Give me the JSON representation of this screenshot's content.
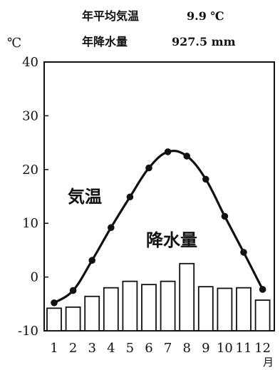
{
  "header": {
    "temp_label": "年平均気温",
    "temp_value": "9.9 ℃",
    "precip_label": "年降水量",
    "precip_value": "927.5 mm"
  },
  "chart_data": {
    "type": "bar+line",
    "y_unit": "℃",
    "x_unit": "月",
    "categories": [
      "1",
      "2",
      "3",
      "4",
      "5",
      "6",
      "7",
      "8",
      "9",
      "10",
      "11",
      "12"
    ],
    "ylim": [
      -10,
      40
    ],
    "yticks": [
      -10,
      0,
      10,
      20,
      30,
      40
    ],
    "grid": false,
    "series": [
      {
        "name": "気温",
        "type": "line",
        "color": "#111111",
        "values": [
          -4.8,
          -2.5,
          3.1,
          9.2,
          14.9,
          20.3,
          23.3,
          22.5,
          18.2,
          11.3,
          4.6,
          -2.3
        ]
      },
      {
        "name": "降水量",
        "type": "bar",
        "color": "#ffffff",
        "values": [
          -5.8,
          -5.6,
          -3.6,
          -2.0,
          -0.8,
          -1.4,
          -0.8,
          2.5,
          -1.8,
          -2.1,
          -2.0,
          -4.3
        ]
      }
    ],
    "annotations": [
      "気温",
      "降水量"
    ]
  }
}
